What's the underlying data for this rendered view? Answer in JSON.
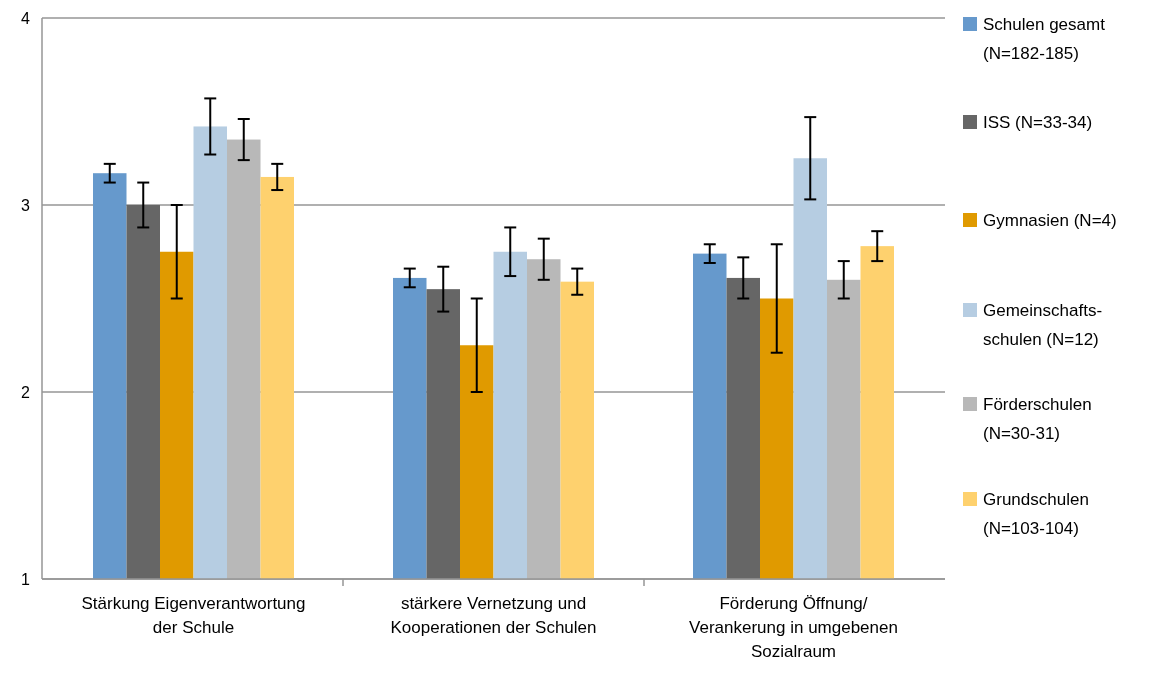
{
  "chart_data": {
    "type": "bar",
    "categories": [
      "Stärkung Eigenverantwortung\nder Schule",
      "stärkere Vernetzung und\nKooperationen der Schulen",
      "Förderung Öffnung/\nVerankerung in umgebenen\nSozialraum"
    ],
    "series": [
      {
        "name": "Schulen gesamt\n(N=182-185)",
        "color": "#6699cc",
        "values": [
          3.17,
          2.61,
          2.74
        ],
        "errors": [
          0.05,
          0.05,
          0.05
        ]
      },
      {
        "name": "ISS (N=33-34)",
        "color": "#666666",
        "values": [
          3.0,
          2.55,
          2.61
        ],
        "errors": [
          0.12,
          0.12,
          0.11
        ]
      },
      {
        "name": "Gymnasien (N=4)",
        "color": "#e09a00",
        "values": [
          2.75,
          2.25,
          2.5
        ],
        "errors": [
          0.25,
          0.25,
          0.29
        ]
      },
      {
        "name": "Gemeinschafts-\nschulen (N=12)",
        "color": "#b6cde2",
        "values": [
          3.42,
          2.75,
          3.25
        ],
        "errors": [
          0.15,
          0.13,
          0.22
        ]
      },
      {
        "name": "Förderschulen\n(N=30-31)",
        "color": "#b8b8b8",
        "values": [
          3.35,
          2.71,
          2.6
        ],
        "errors": [
          0.11,
          0.11,
          0.1
        ]
      },
      {
        "name": "Grundschulen\n(N=103-104)",
        "color": "#fed16e",
        "values": [
          3.15,
          2.59,
          2.78
        ],
        "errors": [
          0.07,
          0.07,
          0.08
        ]
      }
    ],
    "ylim": [
      1,
      4
    ],
    "yticks": [
      1,
      2,
      3,
      4
    ],
    "grid": "y",
    "legend": "right"
  }
}
